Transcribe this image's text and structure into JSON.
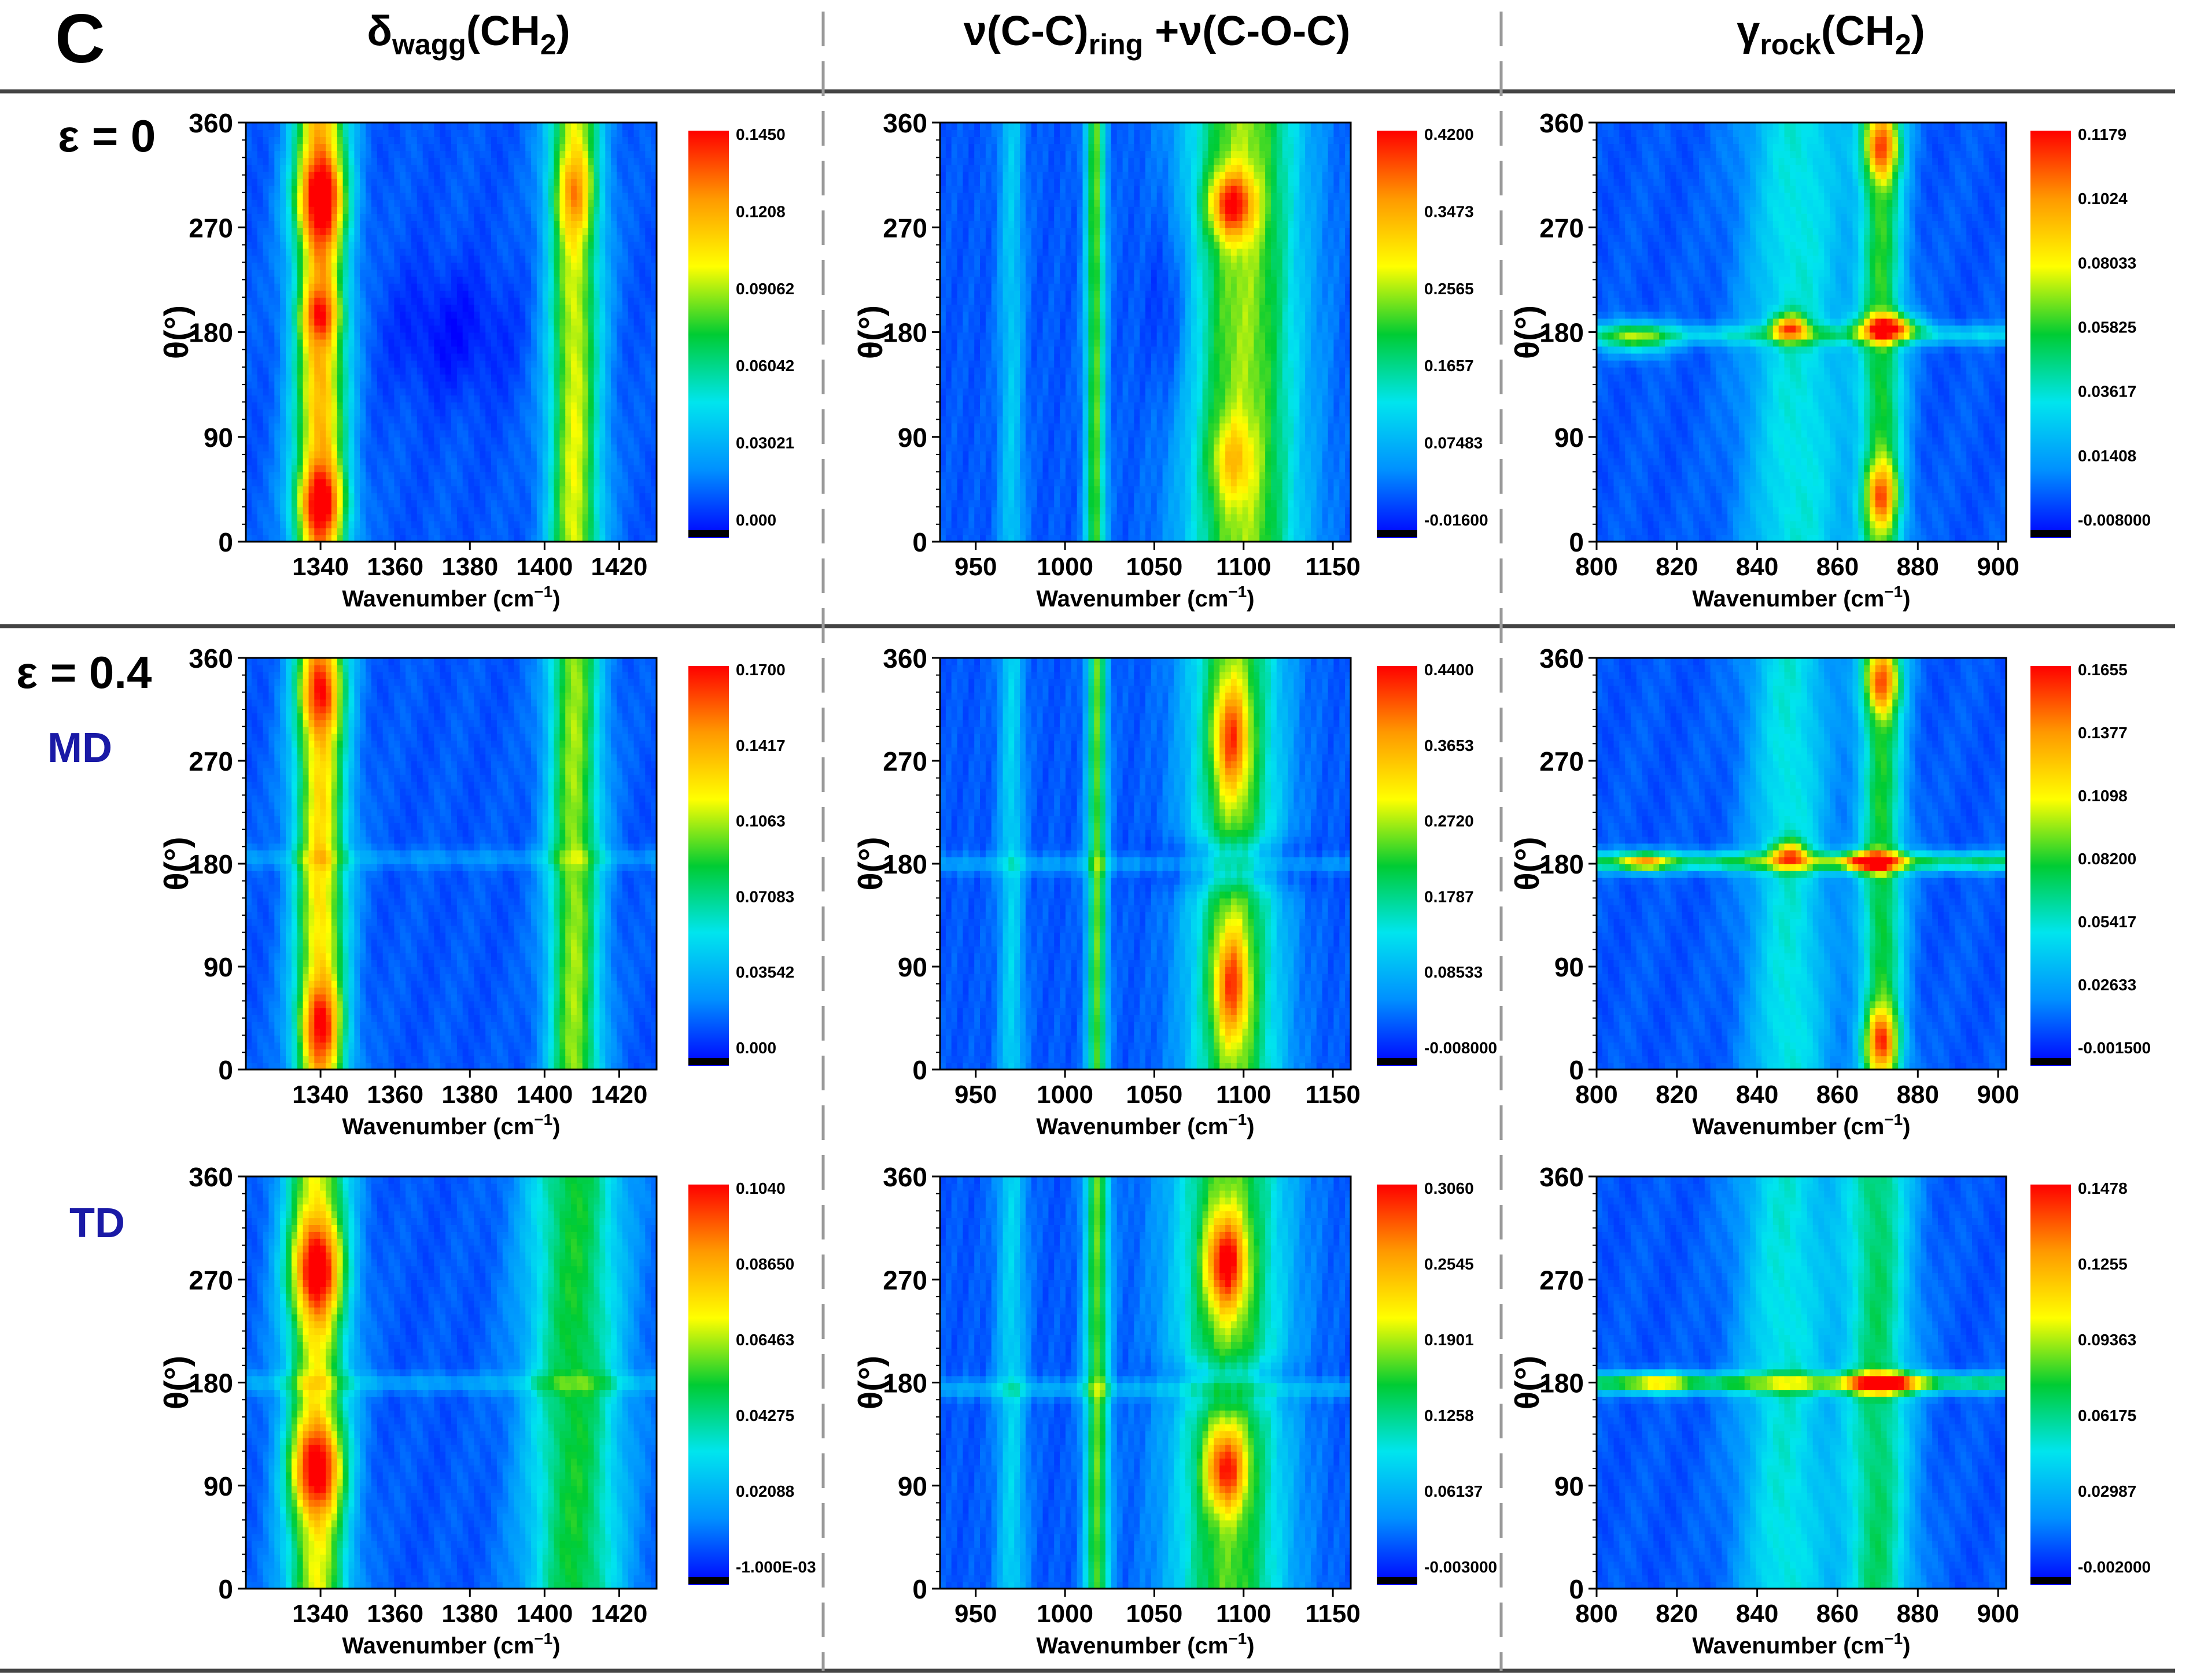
{
  "panel_label": "C",
  "column_titles": [
    {
      "main": "δ",
      "sub": "wagg",
      "tail": "(CH",
      "sub2": "2",
      "end": ")"
    },
    {
      "main": "ν(C-C)",
      "sub": "ring",
      "tail": " +ν(C-O-C)",
      "sub2": "",
      "end": ""
    },
    {
      "main": "γ",
      "sub": "rock",
      "tail": "(CH",
      "sub2": "2",
      "end": ")"
    }
  ],
  "row_labels": [
    "ε = 0",
    "ε = 0.4",
    "MD",
    "TD"
  ],
  "colors": {
    "label_blue": "#1a1aa6",
    "divider_dark": "#444444",
    "divider_dashed": "#999999",
    "colormap": [
      "#0000ff",
      "#0090ff",
      "#00e5ee",
      "#00cc33",
      "#ffff00",
      "#ff9900",
      "#ff0000"
    ],
    "underflow": "#000000"
  },
  "chart_data": [
    {
      "name": "row0-col0",
      "type": "heatmap",
      "series": "ε = 0, δwagg(CH2)",
      "xlabel": "Wavenumber (cm",
      "xlabel_sup": "−1",
      "xlabel_end": ")",
      "ylabel": "θ(°)",
      "xlim": [
        1320,
        1430
      ],
      "ylim": [
        0,
        360
      ],
      "xticks": [
        1340,
        1360,
        1380,
        1400,
        1420
      ],
      "yticks": [
        0,
        90,
        180,
        270,
        360
      ],
      "colorbar": [
        "0.1450",
        "0.1208",
        "0.09062",
        "0.06042",
        "0.03021",
        "0.000"
      ],
      "bands": [
        {
          "x": 1340,
          "w": 5,
          "a": 0.7
        },
        {
          "x": 1408,
          "w": 5,
          "a": 0.55
        }
      ],
      "hot": [
        {
          "x": 1340,
          "y": 295,
          "sx": 5,
          "sy": 25,
          "a": 0.35
        },
        {
          "x": 1340,
          "y": 35,
          "sx": 5,
          "sy": 20,
          "a": 0.3
        },
        {
          "x": 1340,
          "y": 195,
          "sx": 4,
          "sy": 15,
          "a": 0.2
        },
        {
          "x": 1408,
          "y": 300,
          "sx": 4,
          "sy": 25,
          "a": 0.2
        }
      ],
      "dip": [
        {
          "x": 1375,
          "y": 180,
          "sx": 12,
          "sy": 40,
          "a": 0.08
        }
      ]
    },
    {
      "name": "row0-col1",
      "type": "heatmap",
      "series": "ε = 0, ν(C-C)ring + ν(C-O-C)",
      "xlabel": "Wavenumber (cm",
      "xlabel_sup": "−1",
      "xlabel_end": ")",
      "ylabel": "θ(°)",
      "xlim": [
        930,
        1160
      ],
      "ylim": [
        0,
        360
      ],
      "xticks": [
        950,
        1000,
        1050,
        1100,
        1150
      ],
      "yticks": [
        0,
        90,
        180,
        270,
        360
      ],
      "colorbar": [
        "0.4200",
        "0.3473",
        "0.2565",
        "0.1657",
        "0.07483",
        "-0.01600"
      ],
      "bands": [
        {
          "x": 1017,
          "w": 4,
          "a": 0.45
        },
        {
          "x": 1100,
          "w": 22,
          "a": 0.5
        },
        {
          "x": 970,
          "w": 5,
          "a": 0.18
        }
      ],
      "hot": [
        {
          "x": 1093,
          "y": 290,
          "sx": 9,
          "sy": 20,
          "a": 0.45
        },
        {
          "x": 1093,
          "y": 70,
          "sx": 9,
          "sy": 25,
          "a": 0.2
        }
      ],
      "dip": [
        {
          "x": 1060,
          "y": 200,
          "sx": 10,
          "sy": 60,
          "a": 0.1
        }
      ]
    },
    {
      "name": "row0-col2",
      "type": "heatmap",
      "series": "ε = 0, γrock(CH2)",
      "xlabel": "Wavenumber (cm",
      "xlabel_sup": "−1",
      "xlabel_end": ")",
      "ylabel": "θ(°)",
      "xlim": [
        800,
        902
      ],
      "ylim": [
        0,
        360
      ],
      "xticks": [
        800,
        820,
        840,
        860,
        880,
        900
      ],
      "yticks": [
        0,
        90,
        180,
        270,
        360
      ],
      "colorbar": [
        "0.1179",
        "0.1024",
        "0.08033",
        "0.05825",
        "0.03617",
        "0.01408",
        "-0.008000"
      ],
      "bands": [
        {
          "x": 871,
          "w": 4,
          "a": 0.4
        },
        {
          "x": 850,
          "w": 9,
          "a": 0.25
        }
      ],
      "hot": [
        {
          "x": 871,
          "y": 340,
          "sx": 3,
          "sy": 20,
          "a": 0.45
        },
        {
          "x": 871,
          "y": 40,
          "sx": 3,
          "sy": 20,
          "a": 0.4
        },
        {
          "x": 848,
          "y": 185,
          "sx": 3,
          "sy": 8,
          "a": 0.5
        },
        {
          "x": 873,
          "y": 185,
          "sx": 5,
          "sy": 8,
          "a": 0.55
        },
        {
          "x": 810,
          "y": 175,
          "sx": 6,
          "sy": 10,
          "a": 0.35
        }
      ],
      "dip": [],
      "hline": {
        "y": 178,
        "a": 0.2
      }
    },
    {
      "name": "row1-col0",
      "type": "heatmap",
      "series": "ε = 0.4 MD, δwagg(CH2)",
      "xlabel": "Wavenumber (cm",
      "xlabel_sup": "−1",
      "xlabel_end": ")",
      "ylabel": "θ(°)",
      "xlim": [
        1320,
        1430
      ],
      "ylim": [
        0,
        360
      ],
      "xticks": [
        1340,
        1360,
        1380,
        1400,
        1420
      ],
      "yticks": [
        0,
        90,
        180,
        270,
        360
      ],
      "colorbar": [
        "0.1700",
        "0.1417",
        "0.1063",
        "0.07083",
        "0.03542",
        "0.000"
      ],
      "bands": [
        {
          "x": 1340,
          "w": 5,
          "a": 0.62
        },
        {
          "x": 1408,
          "w": 5,
          "a": 0.5
        }
      ],
      "hot": [
        {
          "x": 1340,
          "y": 330,
          "sx": 4,
          "sy": 25,
          "a": 0.3
        },
        {
          "x": 1340,
          "y": 40,
          "sx": 4,
          "sy": 25,
          "a": 0.3
        }
      ],
      "dip": [],
      "hline": {
        "y": 185,
        "a": 0.08
      }
    },
    {
      "name": "row1-col1",
      "type": "heatmap",
      "series": "ε = 0.4 MD, ν(C-C)ring + ν(C-O-C)",
      "xlabel": "Wavenumber (cm",
      "xlabel_sup": "−1",
      "xlabel_end": ")",
      "ylabel": "θ(°)",
      "xlim": [
        930,
        1160
      ],
      "ylim": [
        0,
        360
      ],
      "xticks": [
        950,
        1000,
        1050,
        1100,
        1150
      ],
      "yticks": [
        0,
        90,
        180,
        270,
        360
      ],
      "colorbar": [
        "0.4400",
        "0.3653",
        "0.2720",
        "0.1787",
        "0.08533",
        "-0.008000"
      ],
      "bands": [
        {
          "x": 1018,
          "w": 4,
          "a": 0.45
        },
        {
          "x": 1095,
          "w": 18,
          "a": 0.45
        },
        {
          "x": 970,
          "w": 5,
          "a": 0.2
        }
      ],
      "hot": [
        {
          "x": 1093,
          "y": 290,
          "sx": 7,
          "sy": 35,
          "a": 0.4
        },
        {
          "x": 1093,
          "y": 75,
          "sx": 7,
          "sy": 35,
          "a": 0.4
        }
      ],
      "dip": [
        {
          "x": 1095,
          "y": 180,
          "sx": 25,
          "sy": 15,
          "a": 0.25
        }
      ],
      "hline": {
        "y": 180,
        "a": 0.1
      }
    },
    {
      "name": "row1-col2",
      "type": "heatmap",
      "series": "ε = 0.4 MD, γrock(CH2)",
      "xlabel": "Wavenumber (cm",
      "xlabel_sup": "−1",
      "xlabel_end": ")",
      "ylabel": "θ(°)",
      "xlim": [
        800,
        902
      ],
      "ylim": [
        0,
        360
      ],
      "xticks": [
        800,
        820,
        840,
        860,
        880,
        900
      ],
      "yticks": [
        0,
        90,
        180,
        270,
        360
      ],
      "colorbar": [
        "0.1655",
        "0.1377",
        "0.1098",
        "0.08200",
        "0.05417",
        "0.02633",
        "-0.001500"
      ],
      "bands": [
        {
          "x": 871,
          "w": 4,
          "a": 0.4
        },
        {
          "x": 848,
          "w": 7,
          "a": 0.25
        }
      ],
      "hot": [
        {
          "x": 871,
          "y": 340,
          "sx": 3,
          "sy": 20,
          "a": 0.45
        },
        {
          "x": 871,
          "y": 25,
          "sx": 3,
          "sy": 20,
          "a": 0.45
        },
        {
          "x": 848,
          "y": 190,
          "sx": 3,
          "sy": 8,
          "a": 0.4
        },
        {
          "x": 868,
          "y": 182,
          "sx": 5,
          "sy": 6,
          "a": 0.5
        },
        {
          "x": 812,
          "y": 182,
          "sx": 4,
          "sy": 6,
          "a": 0.4
        }
      ],
      "dip": [],
      "hline": {
        "y": 182,
        "a": 0.35
      }
    },
    {
      "name": "row2-col0",
      "type": "heatmap",
      "series": "ε = 0.4 TD, δwagg(CH2)",
      "xlabel": "Wavenumber (cm",
      "xlabel_sup": "−1",
      "xlabel_end": ")",
      "ylabel": "θ(°)",
      "xlim": [
        1320,
        1430
      ],
      "ylim": [
        0,
        360
      ],
      "xticks": [
        1340,
        1360,
        1380,
        1400,
        1420
      ],
      "yticks": [
        0,
        90,
        180,
        270,
        360
      ],
      "colorbar": [
        "0.1040",
        "0.08650",
        "0.06463",
        "0.04275",
        "0.02088",
        "-1.000E-03"
      ],
      "bands": [
        {
          "x": 1339,
          "w": 6,
          "a": 0.55
        },
        {
          "x": 1408,
          "w": 9,
          "a": 0.4
        }
      ],
      "hot": [
        {
          "x": 1339,
          "y": 280,
          "sx": 5,
          "sy": 30,
          "a": 0.45
        },
        {
          "x": 1339,
          "y": 105,
          "sx": 5,
          "sy": 28,
          "a": 0.45
        }
      ],
      "dip": [],
      "hline": {
        "y": 180,
        "a": 0.1
      }
    },
    {
      "name": "row2-col1",
      "type": "heatmap",
      "series": "ε = 0.4 TD, ν(C-C)ring + ν(C-O-C)",
      "xlabel": "Wavenumber (cm",
      "xlabel_sup": "−1",
      "xlabel_end": ")",
      "ylabel": "θ(°)",
      "xlim": [
        930,
        1160
      ],
      "ylim": [
        0,
        360
      ],
      "xticks": [
        950,
        1000,
        1050,
        1100,
        1150
      ],
      "yticks": [
        0,
        90,
        180,
        270,
        360
      ],
      "colorbar": [
        "0.3060",
        "0.2545",
        "0.1901",
        "0.1258",
        "0.06137",
        "-0.003000"
      ],
      "bands": [
        {
          "x": 1018,
          "w": 5,
          "a": 0.45
        },
        {
          "x": 1092,
          "w": 22,
          "a": 0.45
        },
        {
          "x": 970,
          "w": 6,
          "a": 0.2
        }
      ],
      "hot": [
        {
          "x": 1090,
          "y": 285,
          "sx": 8,
          "sy": 30,
          "a": 0.5
        },
        {
          "x": 1090,
          "y": 105,
          "sx": 8,
          "sy": 25,
          "a": 0.45
        }
      ],
      "dip": [
        {
          "x": 1092,
          "y": 180,
          "sx": 25,
          "sy": 15,
          "a": 0.2
        }
      ],
      "hline": {
        "y": 175,
        "a": 0.12
      }
    },
    {
      "name": "row2-col2",
      "type": "heatmap",
      "series": "ε = 0.4 TD, γrock(CH2)",
      "xlabel": "Wavenumber (cm",
      "xlabel_sup": "−1",
      "xlabel_end": ")",
      "ylabel": "θ(°)",
      "xlim": [
        800,
        902
      ],
      "ylim": [
        0,
        360
      ],
      "xticks": [
        800,
        820,
        840,
        860,
        880,
        900
      ],
      "yticks": [
        0,
        90,
        180,
        270,
        360
      ],
      "colorbar": [
        "0.1478",
        "0.1255",
        "0.09363",
        "0.06175",
        "0.02987",
        "-0.002000"
      ],
      "bands": [
        {
          "x": 870,
          "w": 6,
          "a": 0.35
        },
        {
          "x": 847,
          "w": 8,
          "a": 0.25
        }
      ],
      "hot": [
        {
          "x": 872,
          "y": 180,
          "sx": 6,
          "sy": 6,
          "a": 0.5
        },
        {
          "x": 815,
          "y": 180,
          "sx": 6,
          "sy": 6,
          "a": 0.3
        }
      ],
      "dip": [],
      "hline": {
        "y": 180,
        "a": 0.35
      }
    }
  ]
}
